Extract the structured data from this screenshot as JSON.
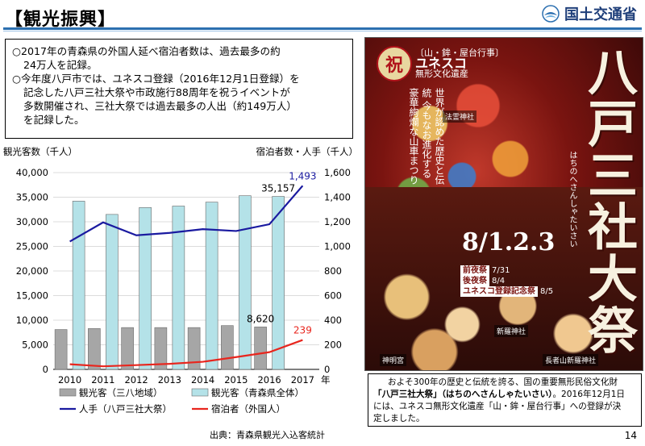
{
  "header": {
    "title": "【観光振興】",
    "logo_text": "国土交通省"
  },
  "summary": {
    "bullets": [
      [
        "○2017年の青森県の外国人延べ宿泊者数は、過去最多の約",
        "24万人を記録。"
      ],
      [
        "○今年度八戸市では、ユネスコ登録（2016年12月1日登録）を",
        "記念した八戸三社大祭や市政施行88周年を祝うイベントが",
        "多数開催され、三社大祭では過去最多の人出（約149万人）",
        "を記録した。"
      ]
    ]
  },
  "chart_data": {
    "type": "bar",
    "left_axis_title": "観光客数（千人）",
    "right_axis_title": "宿泊者数・人手（千人）",
    "categories": [
      "2010",
      "2011",
      "2012",
      "2013",
      "2014",
      "2015",
      "2016",
      "2017"
    ],
    "x_unit": "年",
    "ylim_left": [
      0,
      40000
    ],
    "yticks_left": [
      "0",
      "5,000",
      "10,000",
      "15,000",
      "20,000",
      "25,000",
      "30,000",
      "35,000",
      "40,000"
    ],
    "ylim_right": [
      0,
      1600
    ],
    "yticks_right": [
      "0",
      "200",
      "400",
      "600",
      "800",
      "1,000",
      "1,200",
      "1,400",
      "1,600"
    ],
    "grid": true,
    "series": [
      {
        "name": "観光客（三八地域）",
        "kind": "bar",
        "axis": "left",
        "color": "#a6a6a6",
        "values": [
          8100,
          8300,
          8500,
          8500,
          8500,
          8900,
          8620,
          null
        ]
      },
      {
        "name": "観光客（青森県全体）",
        "kind": "bar",
        "axis": "left",
        "color": "#b4e2e8",
        "values": [
          34200,
          31500,
          32900,
          33200,
          34000,
          35300,
          35157,
          null
        ]
      },
      {
        "name": "人手（八戸三社大祭）",
        "kind": "line",
        "axis": "right",
        "color": "#1a1aa0",
        "values": [
          1040,
          1195,
          1090,
          1110,
          1140,
          1125,
          1180,
          1493
        ]
      },
      {
        "name": "宿泊者（外国人）",
        "kind": "line",
        "axis": "right",
        "color": "#e8261e",
        "values": [
          42,
          25,
          35,
          45,
          62,
          100,
          140,
          239
        ]
      }
    ],
    "annotations": [
      {
        "text": "35,157",
        "series": 1,
        "index": 6,
        "color": "#000000"
      },
      {
        "text": "8,620",
        "series": 0,
        "index": 6,
        "color": "#000000"
      },
      {
        "text": "1,493",
        "series": 2,
        "index": 7,
        "color": "#1a1aa0"
      },
      {
        "text": "239",
        "series": 3,
        "index": 7,
        "color": "#e8261e"
      }
    ],
    "legend_position": "bottom"
  },
  "source": "出典：青森県観光入込客統計",
  "poster": {
    "badge": "祝",
    "unesco_line1": "〔山・鉾・屋台行事〕",
    "unesco_line2": "ユネスコ",
    "unesco_line3": "無形文化遺産",
    "title_vertical": "八戸三社大祭",
    "ruby": "はちのへさんしゃたいさい",
    "tagline": "世界が認めた歴史と伝統 今もなお進化する 豪華絢爛な山車まつり",
    "dates": "8/1.2.3",
    "schedule": [
      {
        "tag": "前夜祭",
        "value": "7/31"
      },
      {
        "tag": "後夜祭",
        "value": "8/4"
      },
      {
        "tag": "ユネスコ登録記念祭",
        "value": "8/5"
      }
    ],
    "shrines": [
      "法霊神社",
      "新羅神社",
      "長者山新羅神社",
      "神明宮"
    ]
  },
  "caption": {
    "line1": "およそ300年の歴史と伝統を誇る、国の重要無形民俗文化財",
    "line2_emph": "「八戸三社大祭」（はちのへさんしゃたいさい）",
    "line2_rest": "。2016年12月1日",
    "line3": "には、ユネスコ無形文化遺産「山・鉾・屋台行事」への登録が決",
    "line4": "定しました。"
  },
  "page_number": "14"
}
